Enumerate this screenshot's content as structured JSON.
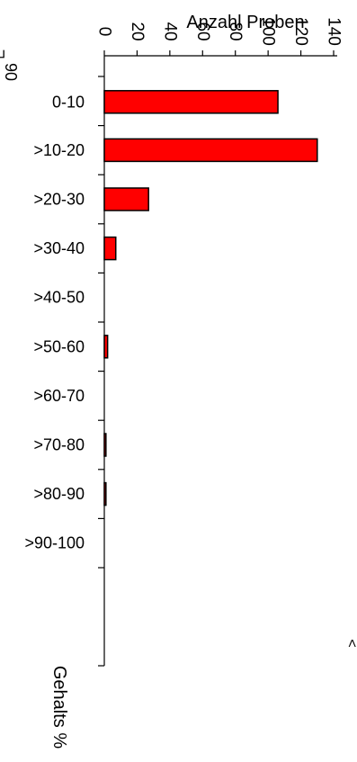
{
  "chart_data": {
    "type": "bar",
    "orientation": "horizontal",
    "xlabel": "Anzahl Proben",
    "ylabel": "Gehalts %",
    "xlim": [
      0,
      140
    ],
    "xticks": [
      "0",
      "20",
      "40",
      "60",
      "80",
      "100",
      "120",
      "140"
    ],
    "categories": [
      "0-10",
      ">10-20",
      ">20-30",
      ">30-40",
      ">40-50",
      ">50-60",
      ">60-70",
      ">70-80",
      ">80-90",
      ">90-100"
    ],
    "values": [
      106,
      130,
      27,
      7,
      0,
      2,
      0,
      1,
      1,
      0
    ],
    "bar_color": "#ff0000",
    "cropped_text": [
      "90",
      "¬",
      "<"
    ]
  }
}
